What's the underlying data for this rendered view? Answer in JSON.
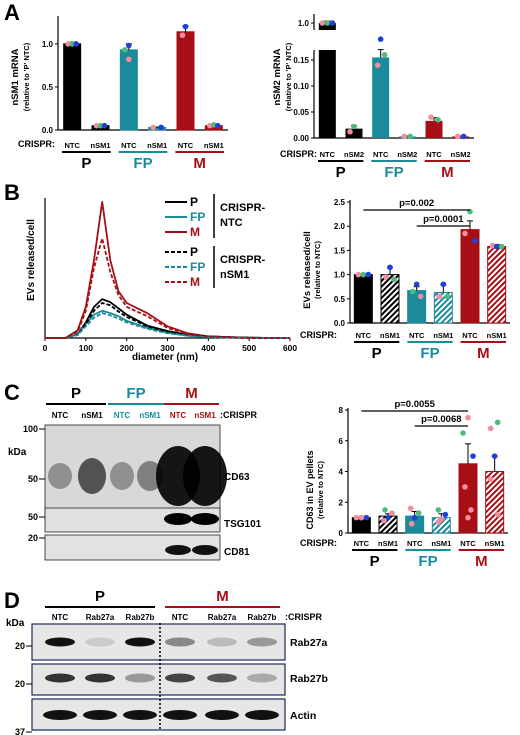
{
  "colors": {
    "P": "#000000",
    "FP": "#1b8a9a",
    "M": "#a50f15",
    "pink": "#f28da0",
    "green": "#4dbb7a",
    "blue": "#1f3fd8"
  },
  "letters": {
    "A": "A",
    "B": "B",
    "C": "C",
    "D": "D"
  },
  "panelA": {
    "left": {
      "ylabel": "nSM1 mRNA",
      "ylabel2": "(relative to 'P' NTC)",
      "yticks": [
        "0.0",
        "0.5",
        "1.0"
      ],
      "crispr_label": "CRISPR:",
      "bar_labels": [
        "NTC",
        "nSM1",
        "NTC",
        "nSM1",
        "NTC",
        "nSM1"
      ],
      "groups": [
        "P",
        "FP",
        "M"
      ]
    },
    "right": {
      "ylabel": "nSM2 mRNA",
      "ylabel2": "(relative to 'P' NTC)",
      "yticks": [
        "0.00",
        "0.05",
        "0.10",
        "0.15",
        "1.0"
      ],
      "crispr_label": "CRISPR:",
      "bar_labels": [
        "NTC",
        "nSM2",
        "NTC",
        "nSM2",
        "NTC",
        "nSM2"
      ],
      "groups": [
        "P",
        "FP",
        "M"
      ]
    }
  },
  "panelB": {
    "line": {
      "ylabel": "EVs released/cell",
      "xlabel": "diameter (nm)",
      "xticks": [
        "0",
        "100",
        "200",
        "300",
        "400",
        "500",
        "600"
      ],
      "legend": {
        "entries": [
          "P",
          "FP",
          "M",
          "P",
          "FP",
          "M"
        ],
        "group1": "CRISPR-",
        "group1b": "NTC",
        "group2": "CRISPR-",
        "group2b": "nSM1"
      }
    },
    "bar": {
      "ylabel": "EVs released/cell",
      "ylabel2": "(relative to NTC)",
      "yticks": [
        "0.0",
        "0.5",
        "1.0",
        "1.5",
        "2.0",
        "2.5"
      ],
      "crispr_label": "CRISPR:",
      "bar_labels": [
        "NTC",
        "nSM1",
        "NTC",
        "nSM1",
        "NTC",
        "nSM1"
      ],
      "groups": [
        "P",
        "FP",
        "M"
      ],
      "p1": "p=0.002",
      "p2": "p=0.0001"
    }
  },
  "panelC": {
    "blot": {
      "groups": [
        "P",
        "FP",
        "M"
      ],
      "lane_labels": [
        "NTC",
        "nSM1",
        "NTC",
        "nSM1",
        "NTC",
        "nSM1"
      ],
      "crispr_label": ":CRISPR",
      "kda": "kDa",
      "markers": [
        "100",
        "50",
        "50",
        "20"
      ],
      "bands": [
        "CD63",
        "TSG101",
        "CD81"
      ]
    },
    "bar": {
      "ylabel": "CD63 in EV pellets",
      "ylabel2": "(relative to NTC)",
      "yticks": [
        "0",
        "2",
        "4",
        "6",
        "8"
      ],
      "crispr_label": "CRISPR:",
      "bar_labels": [
        "NTC",
        "nSM1",
        "NTC",
        "nSM1",
        "NTC",
        "nSM1"
      ],
      "groups": [
        "P",
        "FP",
        "M"
      ],
      "p1": "p=0.0055",
      "p2": "p=0.0068"
    }
  },
  "panelD": {
    "groups": [
      "P",
      "M"
    ],
    "lane_labels": [
      "NTC",
      "Rab27a",
      "Rab27b",
      "NTC",
      "Rab27a",
      "Rab27b"
    ],
    "crispr_label": ":CRISPR",
    "kda": "kDa",
    "markers": [
      "20",
      "20",
      "37"
    ],
    "bands": [
      "Rab27a",
      "Rab27b",
      "Actin"
    ]
  },
  "chart_data": [
    {
      "type": "bar",
      "title": "",
      "ylabel": "nSM1 mRNA (relative to 'P' NTC)",
      "ylim": [
        0,
        1.3
      ],
      "categories": [
        "P NTC",
        "P nSM1",
        "FP NTC",
        "FP nSM1",
        "M NTC",
        "M nSM1"
      ],
      "values": [
        1.0,
        0.05,
        0.93,
        0.03,
        1.14,
        0.05
      ]
    },
    {
      "type": "bar",
      "title": "",
      "ylabel": "nSM2 mRNA (relative to 'P' NTC)",
      "categories": [
        "P NTC",
        "P nSM2",
        "FP NTC",
        "FP nSM2",
        "M NTC",
        "M nSM2"
      ],
      "values": [
        1.0,
        0.018,
        0.155,
        0.003,
        0.033,
        0.003
      ]
    },
    {
      "type": "line",
      "title": "",
      "xlabel": "diameter (nm)",
      "ylabel": "EVs released/cell",
      "xlim": [
        0,
        600
      ],
      "x": [
        0,
        50,
        80,
        100,
        120,
        140,
        160,
        180,
        200,
        250,
        300,
        350,
        400,
        450,
        500,
        550,
        600
      ],
      "series": [
        {
          "name": "P",
          "values": [
            0,
            0,
            0.5,
            2.0,
            4.0,
            5.0,
            4.6,
            3.8,
            3.0,
            1.6,
            0.9,
            0.4,
            0.2,
            0.1,
            0.05,
            0,
            0
          ]
        },
        {
          "name": "FP",
          "values": [
            0,
            0,
            0.5,
            1.8,
            3.0,
            3.5,
            3.2,
            2.8,
            2.2,
            1.3,
            0.7,
            0.3,
            0.15,
            0.05,
            0,
            0,
            0
          ]
        },
        {
          "name": "M",
          "values": [
            0,
            0,
            1.0,
            4.0,
            10.0,
            17.5,
            10.0,
            6.0,
            4.5,
            3.2,
            1.5,
            0.6,
            0.2,
            0.1,
            0,
            0,
            0
          ]
        },
        {
          "name": "P",
          "values": [
            0,
            0,
            0.4,
            1.8,
            3.5,
            4.5,
            4.2,
            3.4,
            2.7,
            1.5,
            0.8,
            0.4,
            0.2,
            0.1,
            0.05,
            0,
            0
          ]
        },
        {
          "name": "FP",
          "values": [
            0,
            0,
            0.4,
            1.5,
            2.6,
            3.2,
            2.9,
            2.5,
            2.0,
            1.2,
            0.6,
            0.3,
            0.1,
            0.05,
            0,
            0,
            0
          ]
        },
        {
          "name": "M",
          "values": [
            0,
            0,
            0.8,
            3.5,
            9.0,
            12.8,
            8.5,
            5.5,
            4.0,
            2.8,
            1.3,
            0.5,
            0.2,
            0.1,
            0,
            0,
            0
          ]
        }
      ]
    },
    {
      "type": "bar",
      "title": "",
      "ylabel": "EVs released/cell (relative to NTC)",
      "ylim": [
        0,
        2.5
      ],
      "categories": [
        "P NTC",
        "P nSM1",
        "FP NTC",
        "FP nSM1",
        "M NTC",
        "M nSM1"
      ],
      "values": [
        1.0,
        1.0,
        0.67,
        0.63,
        1.93,
        1.58
      ]
    },
    {
      "type": "bar",
      "title": "",
      "ylabel": "CD63 in EV pellets (relative to NTC)",
      "ylim": [
        0,
        8
      ],
      "categories": [
        "P NTC",
        "P nSM1",
        "FP NTC",
        "FP nSM1",
        "M NTC",
        "M nSM1"
      ],
      "values": [
        1.0,
        1.1,
        1.1,
        1.0,
        4.5,
        4.0
      ]
    }
  ]
}
